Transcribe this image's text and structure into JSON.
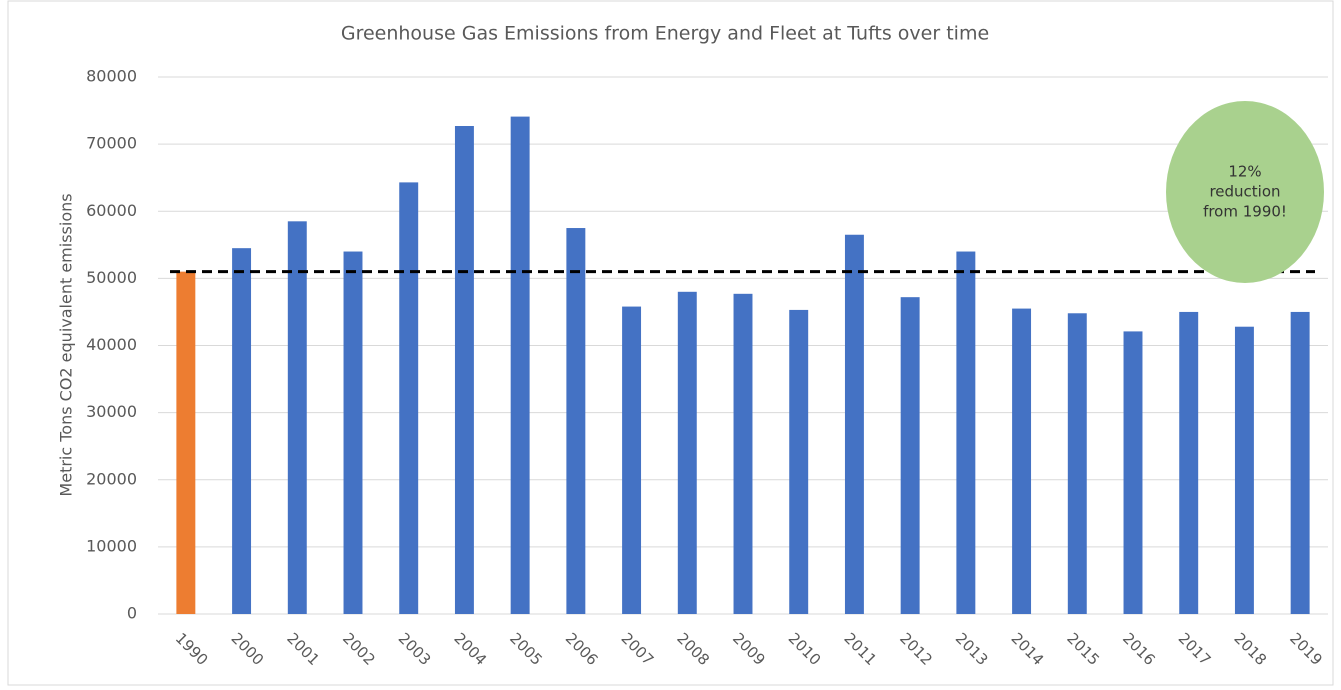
{
  "chart_data": {
    "type": "bar",
    "title": "Greenhouse Gas Emissions from Energy and Fleet at Tufts over time",
    "y_label": "Metric Tons CO2 equivalent emissions",
    "categories": [
      "1990",
      "2000",
      "2001",
      "2002",
      "2003",
      "2004",
      "2005",
      "2006",
      "2007",
      "2008",
      "2009",
      "2010",
      "2011",
      "2012",
      "2013",
      "2014",
      "2015",
      "2016",
      "2017",
      "2018",
      "2019"
    ],
    "values": [
      51000,
      54500,
      58500,
      54000,
      64300,
      72700,
      74100,
      57500,
      45800,
      48000,
      47700,
      45300,
      56500,
      47200,
      54000,
      45500,
      44800,
      42100,
      45000,
      42800,
      45000
    ],
    "colors": [
      "#ed7d31",
      "#4472c4",
      "#4472c4",
      "#4472c4",
      "#4472c4",
      "#4472c4",
      "#4472c4",
      "#4472c4",
      "#4472c4",
      "#4472c4",
      "#4472c4",
      "#4472c4",
      "#4472c4",
      "#4472c4",
      "#4472c4",
      "#4472c4",
      "#4472c4",
      "#4472c4",
      "#4472c4",
      "#4472c4",
      "#4472c4"
    ],
    "ylim": [
      0,
      80000
    ],
    "yticks": [
      0,
      10000,
      20000,
      30000,
      40000,
      50000,
      60000,
      70000,
      80000
    ],
    "grid": true,
    "reference_line": {
      "value": 51000,
      "color": "#000000"
    },
    "annotation": {
      "lines": [
        "12%",
        "reduction",
        "from 1990!"
      ],
      "color": "#a9d18e"
    }
  }
}
